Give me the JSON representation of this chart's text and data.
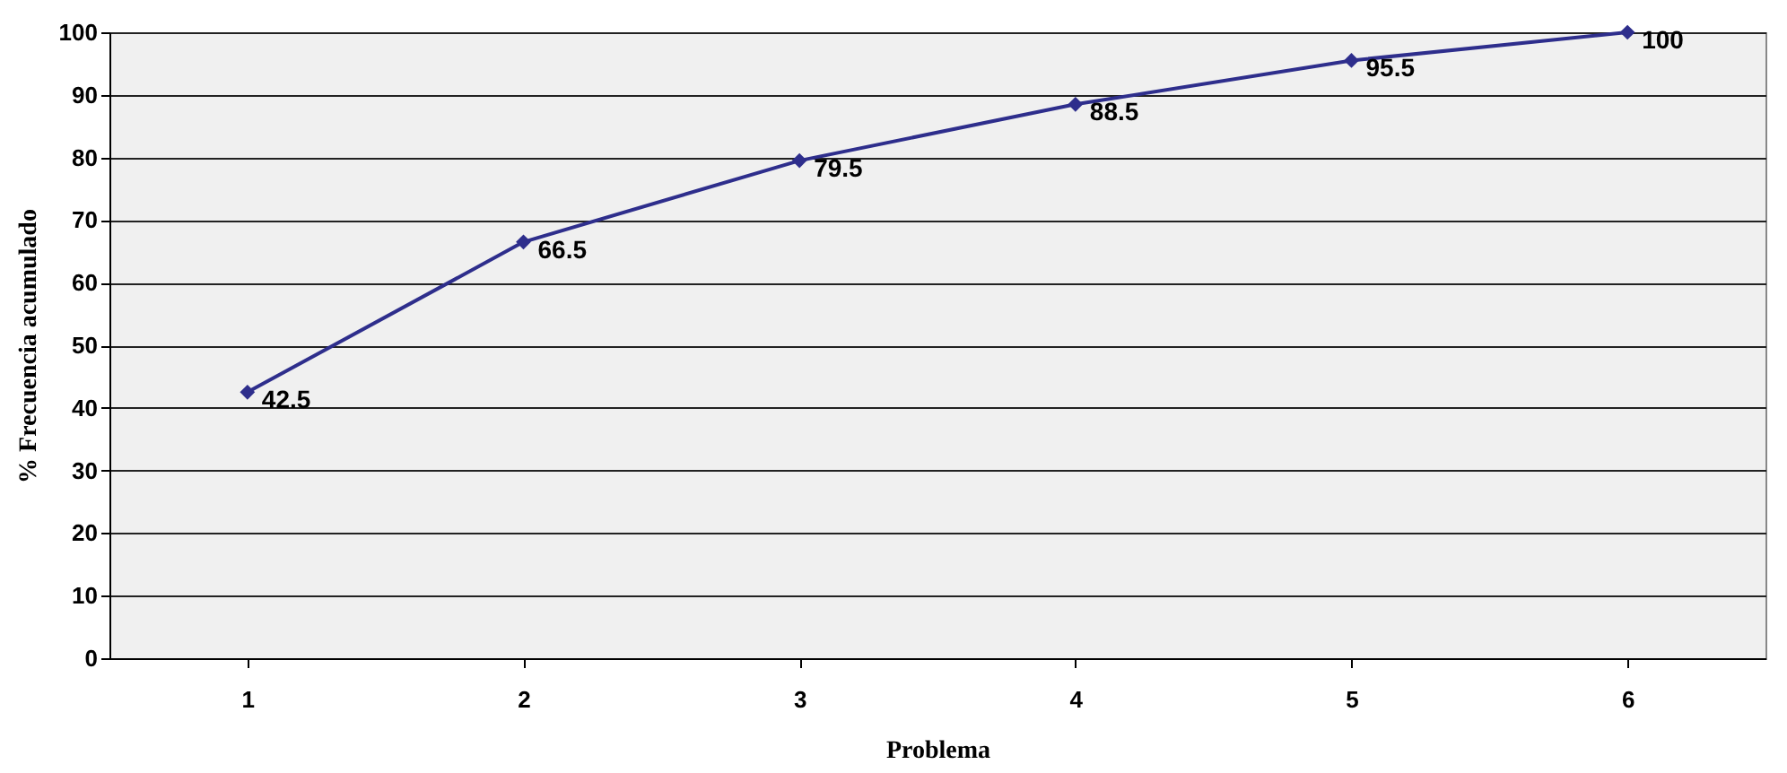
{
  "chart_data": {
    "type": "line",
    "xlabel": "Problema",
    "ylabel": "% Frecuencia acumulado",
    "categories": [
      "1",
      "2",
      "3",
      "4",
      "5",
      "6"
    ],
    "series": [
      {
        "color": "#2e2e8c",
        "values": [
          42.5,
          66.5,
          79.5,
          88.5,
          95.5,
          100
        ]
      }
    ],
    "ylim": [
      0,
      100
    ],
    "yticks": [
      0,
      10,
      20,
      30,
      40,
      50,
      60,
      70,
      80,
      90,
      100
    ],
    "grid": "y",
    "marker": "diamond",
    "line_style": "solid",
    "data_labels": true
  }
}
